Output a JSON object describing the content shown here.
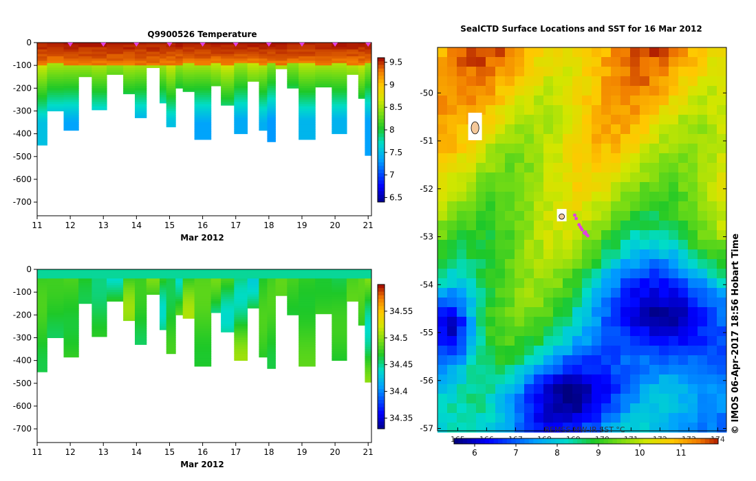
{
  "chart_data": [
    {
      "type": "heatmap",
      "title": "Q9900526  Temperature",
      "xlabel": "Mar 2012",
      "x_ticks": [
        11,
        12,
        13,
        14,
        15,
        16,
        17,
        18,
        19,
        20,
        21
      ],
      "xlim": [
        11,
        21.1
      ],
      "y_ticks": [
        0,
        -100,
        -200,
        -300,
        -400,
        -500,
        -600,
        -700
      ],
      "ylim": [
        -760,
        0
      ],
      "colorbar": {
        "ticks": [
          9.5,
          9,
          8.5,
          8,
          7.5,
          7,
          6.5
        ],
        "range": [
          6.4,
          9.6
        ]
      },
      "profile_markers": [
        12,
        13,
        14,
        15,
        16,
        17,
        18,
        19,
        20,
        21
      ],
      "profiles": [
        {
          "t": 11.0,
          "w": 0.3,
          "depth": 450
        },
        {
          "t": 11.3,
          "w": 0.5,
          "depth": 300
        },
        {
          "t": 11.8,
          "w": 0.45,
          "depth": 385
        },
        {
          "t": 12.25,
          "w": 0.4,
          "depth": 150
        },
        {
          "t": 12.65,
          "w": 0.45,
          "depth": 295
        },
        {
          "t": 13.1,
          "w": 0.5,
          "depth": 140
        },
        {
          "t": 13.6,
          "w": 0.35,
          "depth": 225
        },
        {
          "t": 13.95,
          "w": 0.35,
          "depth": 330
        },
        {
          "t": 14.3,
          "w": 0.4,
          "depth": 110
        },
        {
          "t": 14.7,
          "w": 0.2,
          "depth": 265
        },
        {
          "t": 14.9,
          "w": 0.28,
          "depth": 370
        },
        {
          "t": 15.18,
          "w": 0.22,
          "depth": 200
        },
        {
          "t": 15.4,
          "w": 0.35,
          "depth": 215
        },
        {
          "t": 15.75,
          "w": 0.5,
          "depth": 425
        },
        {
          "t": 16.25,
          "w": 0.3,
          "depth": 190
        },
        {
          "t": 16.55,
          "w": 0.45,
          "depth": 275
        },
        {
          "t": 16.95,
          "w": 0.4,
          "depth": 400
        },
        {
          "t": 17.35,
          "w": 0.35,
          "depth": 170
        },
        {
          "t": 17.7,
          "w": 0.3,
          "depth": 385
        },
        {
          "t": 17.95,
          "w": 0.25,
          "depth": 435
        },
        {
          "t": 18.2,
          "w": 0.35,
          "depth": 115
        },
        {
          "t": 18.55,
          "w": 0.35,
          "depth": 200
        },
        {
          "t": 18.9,
          "w": 0.5,
          "depth": 425
        },
        {
          "t": 19.4,
          "w": 0.5,
          "depth": 195
        },
        {
          "t": 19.9,
          "w": 0.45,
          "depth": 400
        },
        {
          "t": 20.35,
          "w": 0.35,
          "depth": 140
        },
        {
          "t": 20.7,
          "w": 0.25,
          "depth": 245
        },
        {
          "t": 20.9,
          "w": 0.2,
          "depth": 495
        }
      ]
    },
    {
      "type": "heatmap",
      "title": "",
      "xlabel": "Mar 2012",
      "x_ticks": [
        11,
        12,
        13,
        14,
        15,
        16,
        17,
        18,
        19,
        20,
        21
      ],
      "xlim": [
        11,
        21.1
      ],
      "y_ticks": [
        0,
        -100,
        -200,
        -300,
        -400,
        -500,
        -600,
        -700
      ],
      "ylim": [
        -760,
        0
      ],
      "colorbar": {
        "ticks": [
          34.55,
          34.5,
          34.45,
          34.4,
          34.35
        ],
        "range": [
          34.33,
          34.6
        ]
      }
    },
    {
      "type": "heatmap",
      "title": "SealCTD Surface Locations and SST for 16 Mar 2012",
      "x_ticks": [
        165,
        166,
        167,
        168,
        169,
        170,
        171,
        172,
        173,
        174
      ],
      "xlim": [
        164.3,
        174.3
      ],
      "y_ticks": [
        -50,
        -51,
        -52,
        -53,
        -54,
        -55,
        -56,
        -57
      ],
      "ylim": [
        -57.05,
        -49.05
      ],
      "colorbar": {
        "label": "REMSS MW-IR SST °C",
        "ticks": [
          6,
          7,
          8,
          9,
          10,
          11
        ],
        "range": [
          5.5,
          11.9
        ]
      },
      "seal_track": [
        {
          "lon": 169.45,
          "lat": -52.95
        },
        {
          "lon": 169.3,
          "lat": -52.85
        },
        {
          "lon": 169.2,
          "lat": -52.75
        },
        {
          "lon": 169.1,
          "lat": -52.62
        },
        {
          "lon": 169.38,
          "lat": -52.92
        },
        {
          "lon": 169.5,
          "lat": -52.98
        },
        {
          "lon": 169.25,
          "lat": -52.8
        },
        {
          "lon": 169.05,
          "lat": -52.55
        },
        {
          "lon": 169.42,
          "lat": -52.9
        }
      ]
    }
  ],
  "credit": "© IMOS 06-Apr-2017 18:56 Hobart Time",
  "colors": {
    "marker": "#e040e0"
  }
}
